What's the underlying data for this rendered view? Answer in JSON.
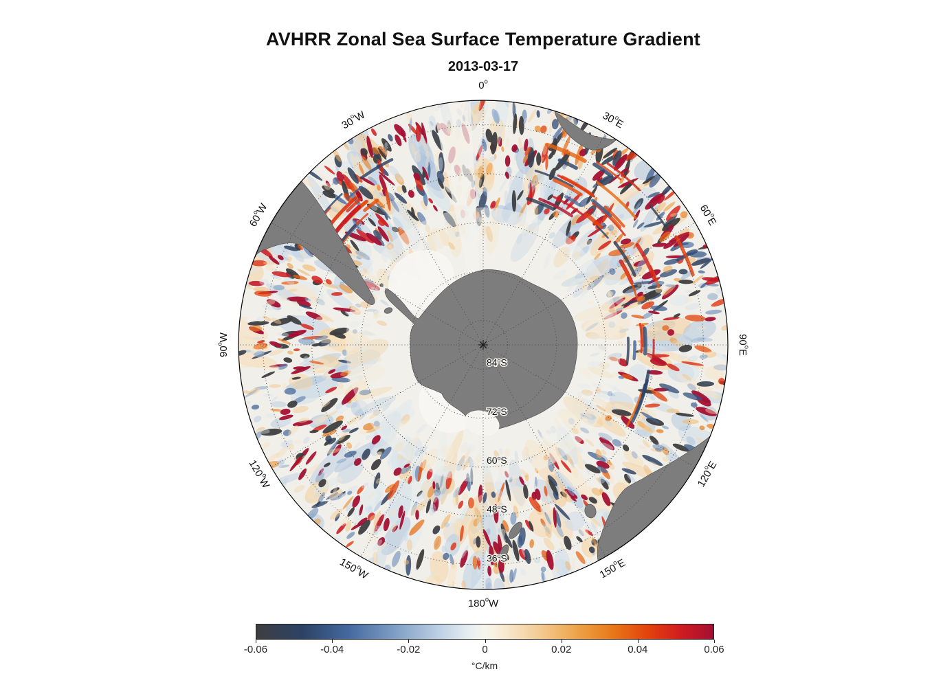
{
  "chart_data": {
    "type": "heatmap",
    "title": "AVHRR Zonal Sea Surface Temperature Gradient",
    "subtitle": "2013-03-17",
    "projection": "south polar azimuthal, Antarctica centered",
    "outer_latitude": "30°S",
    "longitude_labels": [
      {
        "text": "0°",
        "angle": 0,
        "rot": 0
      },
      {
        "text": "30°E",
        "angle": 30,
        "rot": 30
      },
      {
        "text": "60°E",
        "angle": 60,
        "rot": 60
      },
      {
        "text": "90°E",
        "angle": 90,
        "rot": 90
      },
      {
        "text": "120°E",
        "angle": 120,
        "rot": -60
      },
      {
        "text": "150°E",
        "angle": 150,
        "rot": -30
      },
      {
        "text": "180°W",
        "angle": 180,
        "rot": 0
      },
      {
        "text": "150°W",
        "angle": 210,
        "rot": 30
      },
      {
        "text": "120°W",
        "angle": 240,
        "rot": 60
      },
      {
        "text": "90°W",
        "angle": 270,
        "rot": -90
      },
      {
        "text": "60°W",
        "angle": 300,
        "rot": -60
      },
      {
        "text": "30°W",
        "angle": 330,
        "rot": -30
      }
    ],
    "latitude_labels": [
      {
        "text": "84°S",
        "lat": 84
      },
      {
        "text": "72°S",
        "lat": 72
      },
      {
        "text": "60°S",
        "lat": 60
      },
      {
        "text": "48°S",
        "lat": 48
      },
      {
        "text": "36°S",
        "lat": 36
      }
    ],
    "graticule_latitudes": [
      36,
      48,
      60,
      72,
      84
    ],
    "graticule_longitude_step": 30,
    "colorbar": {
      "min": -0.06,
      "max": 0.06,
      "ticks": [
        "-0.06",
        "-0.04",
        "-0.02",
        "0",
        "0.02",
        "0.04",
        "0.06"
      ],
      "unit": "°C/km",
      "stops": [
        {
          "p": 0.0,
          "c": "#3e3e40"
        },
        {
          "p": 0.1,
          "c": "#2c4265"
        },
        {
          "p": 0.2,
          "c": "#44689e"
        },
        {
          "p": 0.3,
          "c": "#7d9cc4"
        },
        {
          "p": 0.4,
          "c": "#bdd0e4"
        },
        {
          "p": 0.47,
          "c": "#e9f0f1"
        },
        {
          "p": 0.5,
          "c": "#f7f5ec"
        },
        {
          "p": 0.54,
          "c": "#f8ead3"
        },
        {
          "p": 0.62,
          "c": "#f3cb93"
        },
        {
          "p": 0.7,
          "c": "#eda44a"
        },
        {
          "p": 0.78,
          "c": "#e87818"
        },
        {
          "p": 0.86,
          "c": "#e2400d"
        },
        {
          "p": 0.93,
          "c": "#d01b20"
        },
        {
          "p": 1.0,
          "c": "#a31033"
        }
      ]
    },
    "colors": {
      "land": "#7d7d7d",
      "land_edge": "#555555",
      "ocean": "#f1efe9",
      "ice": "#f7f6f2",
      "grid": "#4a4a4a",
      "rim": "#000000"
    },
    "land_features": [
      "Antarctica",
      "Antarctic Peninsula",
      "South America",
      "Africa",
      "Australia",
      "Tasmania",
      "New Zealand"
    ]
  }
}
